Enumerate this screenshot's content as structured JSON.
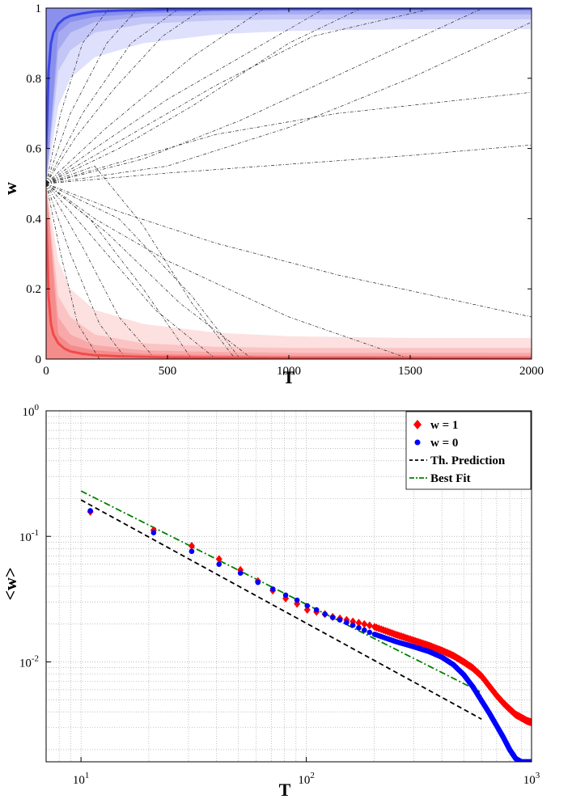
{
  "chart_data": [
    {
      "type": "line",
      "xlabel": "T",
      "ylabel": "w",
      "xlim": [
        0,
        2000
      ],
      "ylim": [
        0,
        1
      ],
      "xticks": [
        "0",
        "500",
        "1000",
        "1500",
        "2000"
      ],
      "yticks": [
        "0",
        "0.2",
        "0.4",
        "0.6",
        "0.8",
        "1"
      ],
      "grid": false,
      "colors": {
        "upper_mean": "#3a46e6",
        "lower_mean": "#f24a4a",
        "trajectories": "#222222",
        "upper_bands": [
          "#dfe0fb",
          "#c3c6f6",
          "#a6abf1",
          "#8a90ec"
        ],
        "lower_bands": [
          "#fde0e0",
          "#fbc4c4",
          "#f8a8a8",
          "#f58c8c"
        ]
      },
      "series": [
        {
          "role": "upper-mean",
          "x": [
            0,
            5,
            10,
            20,
            30,
            50,
            75,
            100,
            150,
            200,
            300,
            500,
            1000,
            2000
          ],
          "y": [
            0.6,
            0.7,
            0.82,
            0.9,
            0.93,
            0.955,
            0.97,
            0.978,
            0.985,
            0.99,
            0.993,
            0.996,
            0.998,
            0.999
          ]
        },
        {
          "role": "lower-mean",
          "x": [
            0,
            5,
            10,
            20,
            30,
            50,
            75,
            100,
            150,
            200,
            300,
            500,
            1000,
            2000
          ],
          "y": [
            0.4,
            0.3,
            0.18,
            0.1,
            0.07,
            0.045,
            0.03,
            0.022,
            0.015,
            0.011,
            0.008,
            0.005,
            0.003,
            0.002
          ]
        }
      ],
      "bands": {
        "upper": [
          {
            "x": [
              0,
              50,
              100,
              200,
              400,
              700,
              1000,
              1500,
              2000
            ],
            "y": [
              0.5,
              0.72,
              0.8,
              0.86,
              0.9,
              0.925,
              0.935,
              0.94,
              0.94
            ]
          },
          {
            "x": [
              0,
              50,
              100,
              200,
              400,
              700,
              1000,
              1500,
              2000
            ],
            "y": [
              0.5,
              0.82,
              0.88,
              0.93,
              0.955,
              0.965,
              0.968,
              0.968,
              0.968
            ]
          },
          {
            "x": [
              0,
              50,
              100,
              200,
              400,
              700,
              1000,
              1500,
              2000
            ],
            "y": [
              0.5,
              0.88,
              0.93,
              0.96,
              0.975,
              0.98,
              0.982,
              0.982,
              0.982
            ]
          },
          {
            "x": [
              0,
              50,
              100,
              200,
              400,
              700,
              1000,
              1500,
              2000
            ],
            "y": [
              0.5,
              0.93,
              0.96,
              0.975,
              0.985,
              0.99,
              0.992,
              0.992,
              0.992
            ]
          }
        ],
        "lower": [
          {
            "x": [
              0,
              50,
              100,
              200,
              400,
              700,
              1000,
              1500,
              2000
            ],
            "y": [
              0.5,
              0.28,
              0.2,
              0.14,
              0.1,
              0.075,
              0.065,
              0.06,
              0.06
            ]
          },
          {
            "x": [
              0,
              50,
              100,
              200,
              400,
              700,
              1000,
              1500,
              2000
            ],
            "y": [
              0.5,
              0.18,
              0.12,
              0.07,
              0.045,
              0.035,
              0.032,
              0.032,
              0.032
            ]
          },
          {
            "x": [
              0,
              50,
              100,
              200,
              400,
              700,
              1000,
              1500,
              2000
            ],
            "y": [
              0.5,
              0.12,
              0.07,
              0.04,
              0.025,
              0.02,
              0.018,
              0.018,
              0.018
            ]
          },
          {
            "x": [
              0,
              50,
              100,
              200,
              400,
              700,
              1000,
              1500,
              2000
            ],
            "y": [
              0.5,
              0.07,
              0.04,
              0.025,
              0.015,
              0.012,
              0.01,
              0.01,
              0.01
            ]
          }
        ]
      },
      "trajectories": [
        {
          "x": [
            0,
            300,
            700,
            1100,
            1600
          ],
          "y": [
            0.5,
            0.62,
            0.78,
            0.92,
            1.0
          ]
        },
        {
          "x": [
            0,
            300,
            700,
            1200,
            2000
          ],
          "y": [
            0.5,
            0.56,
            0.64,
            0.7,
            0.76
          ]
        },
        {
          "x": [
            0,
            500,
            1000,
            1500,
            2000
          ],
          "y": [
            0.5,
            0.53,
            0.555,
            0.58,
            0.61
          ]
        },
        {
          "x": [
            0,
            150,
            350,
            550
          ],
          "y": [
            0.5,
            0.7,
            0.9,
            1.0
          ]
        },
        {
          "x": [
            0,
            200,
            500,
            900,
            1150
          ],
          "y": [
            0.5,
            0.6,
            0.74,
            0.9,
            1.0
          ]
        },
        {
          "x": [
            0,
            250,
            600,
            900
          ],
          "y": [
            0.5,
            0.66,
            0.86,
            1.0
          ]
        },
        {
          "x": [
            0,
            400,
            800,
            1300,
            1800
          ],
          "y": [
            0.5,
            0.57,
            0.68,
            0.84,
            1.0
          ]
        },
        {
          "x": [
            0,
            300,
            700,
            1200,
            2000
          ],
          "y": [
            0.5,
            0.42,
            0.33,
            0.24,
            0.12
          ]
        },
        {
          "x": [
            0,
            200,
            450,
            700
          ],
          "y": [
            0.5,
            0.34,
            0.14,
            0.0
          ]
        },
        {
          "x": [
            0,
            250,
            550,
            850
          ],
          "y": [
            0.5,
            0.36,
            0.16,
            0.0
          ]
        },
        {
          "x": [
            0,
            150,
            300,
            450
          ],
          "y": [
            0.5,
            0.32,
            0.12,
            0.0
          ]
        },
        {
          "x": [
            0,
            300,
            600,
            800
          ],
          "y": [
            0.5,
            0.4,
            0.18,
            0.0
          ]
        },
        {
          "x": [
            0,
            100,
            220,
            330
          ],
          "y": [
            0.5,
            0.3,
            0.1,
            0.0
          ]
        },
        {
          "x": [
            0,
            100,
            250,
            380
          ],
          "y": [
            0.5,
            0.7,
            0.9,
            1.0
          ]
        },
        {
          "x": [
            0,
            120,
            280,
            480,
            650
          ],
          "y": [
            0.5,
            0.63,
            0.77,
            0.92,
            1.0
          ]
        },
        {
          "x": [
            0,
            500,
            1000,
            1500,
            2000
          ],
          "y": [
            0.5,
            0.55,
            0.66,
            0.8,
            0.96
          ]
        },
        {
          "x": [
            0,
            200,
            500,
            1000,
            1500
          ],
          "y": [
            0.5,
            0.4,
            0.28,
            0.12,
            0.0
          ]
        },
        {
          "x": [
            0,
            180,
            400,
            600
          ],
          "y": [
            0.5,
            0.4,
            0.2,
            0.0
          ]
        },
        {
          "x": [
            0,
            60,
            150,
            260
          ],
          "y": [
            0.5,
            0.7,
            0.9,
            1.0
          ]
        },
        {
          "x": [
            0,
            60,
            130,
            220
          ],
          "y": [
            0.5,
            0.3,
            0.1,
            0.0
          ]
        },
        {
          "x": [
            0,
            300,
            600,
            1000,
            1300
          ],
          "y": [
            0.5,
            0.6,
            0.72,
            0.9,
            1.0
          ]
        },
        {
          "x": [
            0,
            200,
            400,
            600,
            780
          ],
          "y": [
            0.5,
            0.55,
            0.38,
            0.16,
            0.0
          ]
        }
      ]
    },
    {
      "type": "scatter",
      "xlabel": "T",
      "ylabel": "<w>",
      "xscale": "log",
      "yscale": "log",
      "xlim": [
        7,
        1000
      ],
      "ylim": [
        0.0016,
        1
      ],
      "xticks": [
        {
          "base": "10",
          "exp": "1"
        },
        {
          "base": "10",
          "exp": "2"
        },
        {
          "base": "10",
          "exp": "3"
        }
      ],
      "yticks": [
        {
          "base": "10",
          "exp": "0"
        },
        {
          "base": "10",
          "exp": "-1"
        },
        {
          "base": "10",
          "exp": "-2"
        }
      ],
      "grid": true,
      "legend_position": "top-right",
      "legend": [
        {
          "label": "w = 1",
          "color": "#ff0000",
          "marker": "diamond"
        },
        {
          "label": "w = 0",
          "color": "#0000ff",
          "marker": "circle"
        },
        {
          "label": "Th. Prediction",
          "color": "#000000",
          "style": "dashed"
        },
        {
          "label": "Best Fit",
          "color": "#008000",
          "style": "dash-dot"
        }
      ],
      "series": [
        {
          "name": "w = 1",
          "color": "#ff0000",
          "marker": "diamond",
          "x": [
            11,
            21,
            31,
            41,
            51,
            61,
            71,
            81,
            91,
            101,
            111,
            121,
            131,
            141,
            151,
            161,
            171,
            181,
            191,
            201,
            250,
            300,
            350,
            400,
            450,
            500,
            550,
            600,
            650,
            700,
            750,
            800,
            850,
            900,
            950,
            1000
          ],
          "y": [
            0.157,
            0.112,
            0.084,
            0.066,
            0.054,
            0.044,
            0.037,
            0.032,
            0.029,
            0.026,
            0.025,
            0.024,
            0.0228,
            0.0222,
            0.0216,
            0.021,
            0.0205,
            0.02,
            0.0195,
            0.019,
            0.0165,
            0.0148,
            0.0135,
            0.0123,
            0.0112,
            0.01,
            0.0089,
            0.0077,
            0.0064,
            0.0054,
            0.0047,
            0.0042,
            0.0038,
            0.0036,
            0.0034,
            0.0033
          ]
        },
        {
          "name": "w = 0",
          "color": "#0000ff",
          "marker": "circle",
          "x": [
            11,
            21,
            31,
            41,
            51,
            61,
            71,
            81,
            91,
            101,
            111,
            121,
            131,
            141,
            151,
            161,
            171,
            181,
            191,
            201,
            250,
            300,
            350,
            400,
            450,
            500,
            550,
            600,
            650,
            700,
            750,
            800,
            850,
            900,
            950,
            1000
          ],
          "y": [
            0.16,
            0.107,
            0.076,
            0.06,
            0.051,
            0.043,
            0.038,
            0.034,
            0.031,
            0.028,
            0.026,
            0.024,
            0.0226,
            0.0216,
            0.0206,
            0.0196,
            0.0187,
            0.0179,
            0.0172,
            0.0166,
            0.0145,
            0.0132,
            0.0121,
            0.0109,
            0.0095,
            0.0079,
            0.0063,
            0.0049,
            0.0039,
            0.0031,
            0.0025,
            0.002,
            0.0017,
            0.0016,
            0.0016,
            0.0016
          ]
        },
        {
          "name": "Th. Prediction",
          "style": "dashed",
          "color": "#000000",
          "x": [
            10,
            600
          ],
          "y": [
            0.195,
            0.0035
          ]
        },
        {
          "name": "Best Fit",
          "style": "dash-dot",
          "color": "#008000",
          "x": [
            10,
            600
          ],
          "y": [
            0.23,
            0.0057
          ]
        }
      ]
    }
  ]
}
